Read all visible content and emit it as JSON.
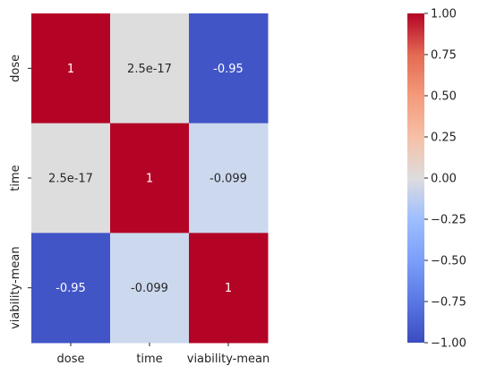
{
  "chart_data": {
    "type": "heatmap",
    "title": "",
    "xlabel": "",
    "ylabel": "",
    "x_categories": [
      "dose",
      "time",
      "viability-mean"
    ],
    "y_categories": [
      "dose",
      "time",
      "viability-mean"
    ],
    "values": [
      [
        1,
        2.5e-17,
        -0.95
      ],
      [
        2.5e-17,
        1,
        -0.099
      ],
      [
        -0.95,
        -0.099,
        1
      ]
    ],
    "annotations": [
      [
        "1",
        "2.5e-17",
        "-0.95"
      ],
      [
        "2.5e-17",
        "1",
        "-0.099"
      ],
      [
        "-0.95",
        "-0.099",
        "1"
      ]
    ],
    "colorbar": {
      "colormap": "coolwarm",
      "range": [
        -1.0,
        1.0
      ],
      "ticks": [
        1.0,
        0.75,
        0.5,
        0.25,
        0.0,
        -0.25,
        -0.5,
        -0.75,
        -1.0
      ],
      "tick_labels": [
        "1.00",
        "0.75",
        "0.50",
        "0.25",
        "0.00",
        "−0.25",
        "−0.50",
        "−0.75",
        "−1.00"
      ]
    },
    "legend": "none",
    "grid": false
  }
}
